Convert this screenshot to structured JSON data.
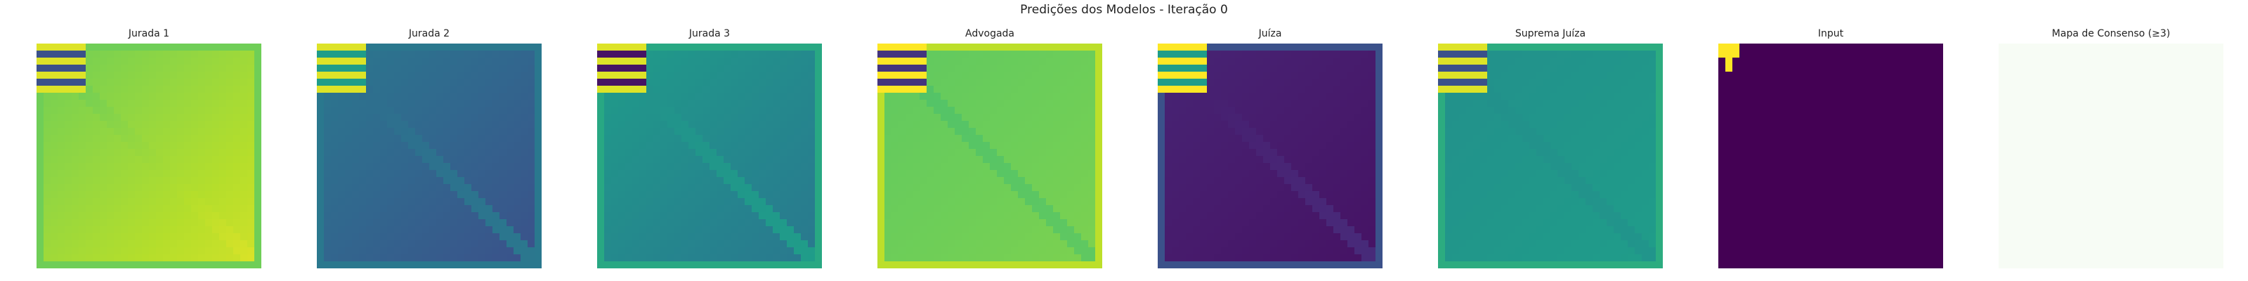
{
  "figure": {
    "title": "Predições dos Modelos - Iteração 0"
  },
  "panels": [
    {
      "title": "Jurada 1",
      "heatmap": {
        "base_start": 0.78,
        "base_end": 0.93,
        "center_lo": 0.75,
        "center_hi": 0.95,
        "border": 0.78,
        "corner": "stripes",
        "corner_hi": 0.95,
        "corner_lo": 0.25
      }
    },
    {
      "title": "Jurada 2",
      "heatmap": {
        "base_start": 0.4,
        "base_end": 0.25,
        "center_lo": 0.35,
        "center_hi": 0.4,
        "border": 0.4,
        "corner": "stripes",
        "corner_hi": 0.95,
        "corner_lo": 0.55
      }
    },
    {
      "title": "Jurada 3",
      "heatmap": {
        "base_start": 0.55,
        "base_end": 0.4,
        "center_lo": 0.5,
        "center_hi": 0.55,
        "border": 0.6,
        "corner": "stripes",
        "corner_hi": 0.95,
        "corner_lo": 0.05
      }
    },
    {
      "title": "Advogada",
      "heatmap": {
        "base_start": 0.75,
        "base_end": 0.8,
        "center_lo": 0.72,
        "center_hi": 0.75,
        "border": 0.9,
        "corner": "stripes",
        "corner_hi": 1.0,
        "corner_lo": 0.15
      }
    },
    {
      "title": "Juíza",
      "heatmap": {
        "base_start": 0.1,
        "base_end": 0.05,
        "center_lo": 0.08,
        "center_hi": 0.12,
        "border": 0.25,
        "corner": "stripes",
        "corner_hi": 1.0,
        "corner_lo": 0.55
      }
    },
    {
      "title": "Suprema Juíza",
      "heatmap": {
        "base_start": 0.5,
        "base_end": 0.55,
        "center_lo": 0.5,
        "center_hi": 0.52,
        "border": 0.62,
        "corner": "stripes",
        "corner_hi": 0.95,
        "corner_lo": 0.25
      }
    },
    {
      "title": "Input",
      "heatmap": {
        "base_start": 0.0,
        "base_end": 0.0,
        "center_lo": 0.0,
        "center_hi": 0.0,
        "border": 0.0,
        "corner": "input",
        "corner_hi": 1.0,
        "corner_lo": 0.0
      }
    },
    {
      "title": "Mapa de Consenso (≥3)",
      "heatmap": {
        "base_start": 0.0,
        "base_end": 0.0,
        "center_lo": 0.0,
        "center_hi": 0.0,
        "border": 0.0,
        "corner": "none",
        "corner_hi": 0.0,
        "corner_lo": 0.0
      },
      "colormap": "greens"
    }
  ],
  "colormaps": {
    "viridis": [
      "#440154",
      "#482878",
      "#3e4989",
      "#31688e",
      "#26828e",
      "#1f9e89",
      "#35b779",
      "#6ece58",
      "#b5de2b",
      "#fde725"
    ],
    "greens": [
      "#f7fcf5",
      "#e5f5e0",
      "#c7e9c0",
      "#a1d99b",
      "#74c476",
      "#41ab5d",
      "#238b45",
      "#006d2c",
      "#00441b"
    ]
  }
}
